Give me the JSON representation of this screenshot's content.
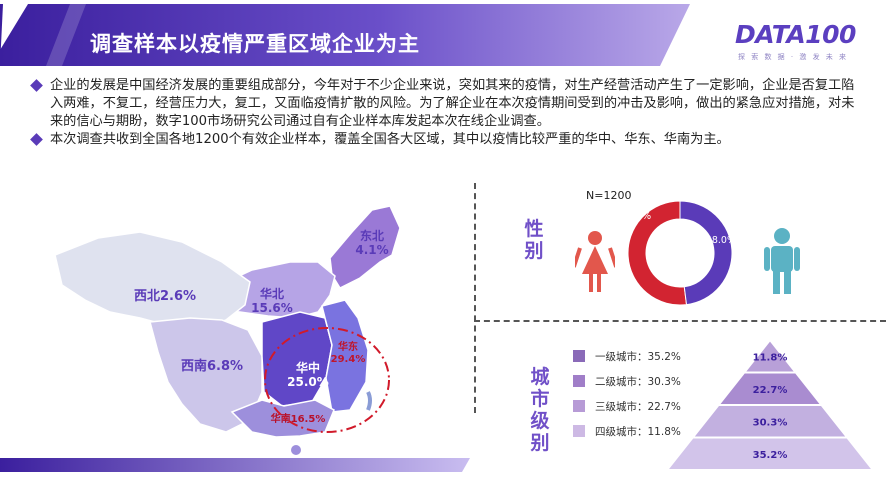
{
  "header": {
    "title": "调查样本以疫情严重区域企业为主"
  },
  "logo": {
    "text": "DATA100",
    "tagline": "探 索 数 据 · 激 发 未 来"
  },
  "intro": {
    "paragraph1": "企业的发展是中国经济发展的重要组成部分，今年对于不少企业来说，突如其来的疫情，对生产经营活动产生了一定影响，企业是否复工陷入两难，不复工，经营压力大，复工，又面临疫情扩散的风险。为了解企业在本次疫情期间受到的冲击及影响，做出的紧急应对措施，对未来的信心与期盼，数字100市场研究公司通过自有企业样本库发起本次在线企业调查。",
    "paragraph2": "本次调查共收到全国各地1200个有效企业样本，覆盖全国各大区域，其中以疫情比较严重的华中、华东、华南为主。"
  },
  "colors": {
    "header_start": "#3b1f9e",
    "header_end": "#b9a8e8",
    "accent": "#5a3bb8",
    "female": "#d22431",
    "male": "#5a3bb8",
    "female_icon": "#e2574c",
    "male_icon": "#5bb2c4",
    "highlight_circle": "#d11a2a",
    "tier1": "#8a6ab8",
    "tier2": "#a07ec8",
    "tier3": "#b79bd6",
    "tier4": "#cdb9e4"
  },
  "chart_data": [
    {
      "type": "map",
      "title": "",
      "regions": [
        {
          "name": "东北",
          "value": 4.1,
          "label": "东北\n4.1%",
          "color": "#9a79d6"
        },
        {
          "name": "华北",
          "value": 15.6,
          "label": "华北\n15.6%",
          "color": "#b6a4e6"
        },
        {
          "name": "西北",
          "value": 2.6,
          "label": "西北2.6%",
          "color": "#dfe2ef"
        },
        {
          "name": "西南",
          "value": 6.8,
          "label": "西南6.8%",
          "color": "#ccc6ea"
        },
        {
          "name": "华中",
          "value": 25.0,
          "label": "华中\n25.0%",
          "color": "#6047c7"
        },
        {
          "name": "华东",
          "value": 29.4,
          "label": "华东\n29.4%",
          "color": "#7a73e0"
        },
        {
          "name": "华南",
          "value": 16.5,
          "label": "华南16.5%",
          "color": "#9d8fdc"
        }
      ],
      "highlight": [
        "华中",
        "华东",
        "华南"
      ]
    },
    {
      "type": "pie",
      "title": "性别",
      "n_label": "N=1200",
      "slices": [
        {
          "name": "女",
          "value": 52.0,
          "label": "52.0%"
        },
        {
          "name": "男",
          "value": 48.0,
          "label": "48.0%"
        }
      ]
    },
    {
      "type": "bar",
      "title": "城市级别",
      "categories": [
        "一级城市",
        "二级城市",
        "三级城市",
        "四级城市"
      ],
      "values": [
        35.2,
        30.3,
        22.7,
        11.8
      ],
      "legend_labels": [
        "一级城市：35.2%",
        "二级城市：30.3%",
        "三级城市：22.7%",
        "四级城市：11.8%"
      ],
      "pyramid_labels": [
        "11.8%",
        "22.7%",
        "30.3%",
        "35.2%"
      ]
    }
  ]
}
